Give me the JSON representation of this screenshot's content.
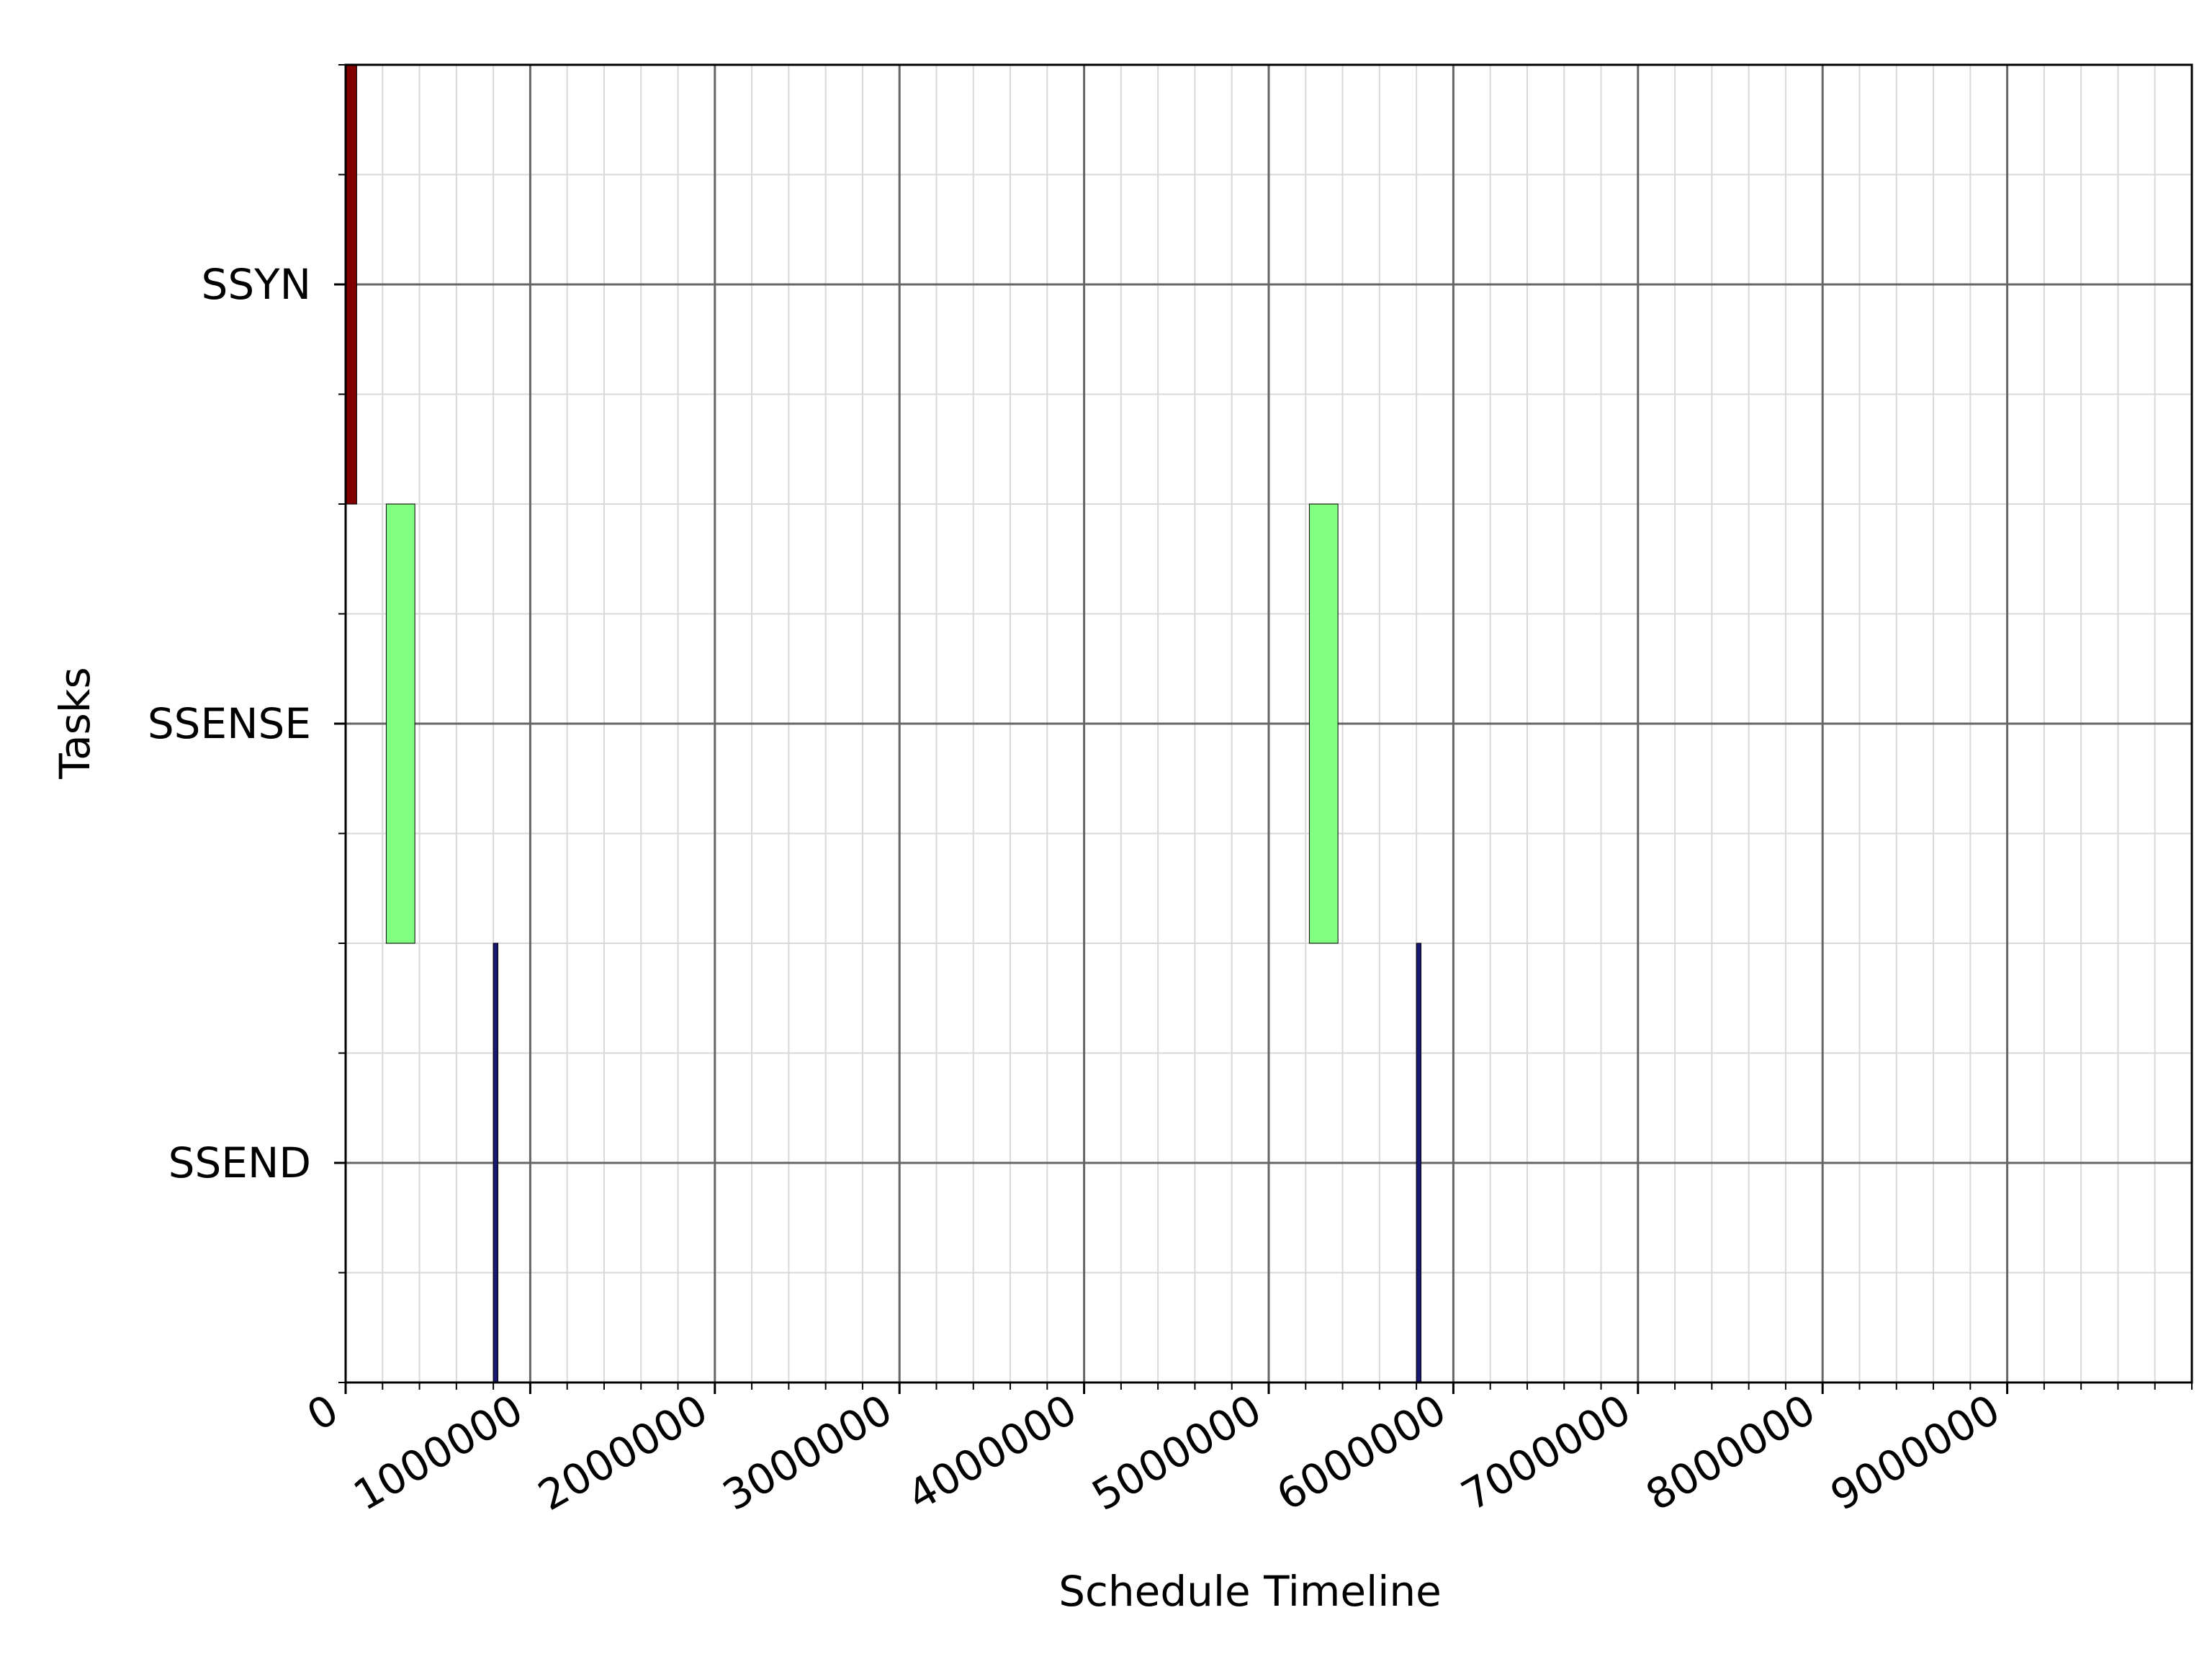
{
  "chart_data": {
    "type": "gantt",
    "xlabel": "Schedule Timeline",
    "ylabel": "Tasks",
    "xlim": [
      0,
      10000000
    ],
    "x_ticks": [
      0,
      1000000,
      2000000,
      3000000,
      4000000,
      5000000,
      6000000,
      7000000,
      8000000,
      9000000
    ],
    "x_tick_labels": [
      "0",
      "1000000",
      "2000000",
      "3000000",
      "4000000",
      "5000000",
      "6000000",
      "7000000",
      "8000000",
      "9000000"
    ],
    "x_minor_step": 200000,
    "tasks": [
      "SSYN",
      "SSENSE",
      "SSEND"
    ],
    "grid": true,
    "bars": [
      {
        "task": "SSYN",
        "start": 0,
        "end": 60000,
        "color": "#800000"
      },
      {
        "task": "SSENSE",
        "start": 220000,
        "end": 375000,
        "color": "#80ff80"
      },
      {
        "task": "SSEND",
        "start": 800000,
        "end": 825000,
        "color": "#191970"
      },
      {
        "task": "SSENSE",
        "start": 5220000,
        "end": 5375000,
        "color": "#80ff80"
      },
      {
        "task": "SSEND",
        "start": 5800000,
        "end": 5825000,
        "color": "#191970"
      }
    ]
  }
}
